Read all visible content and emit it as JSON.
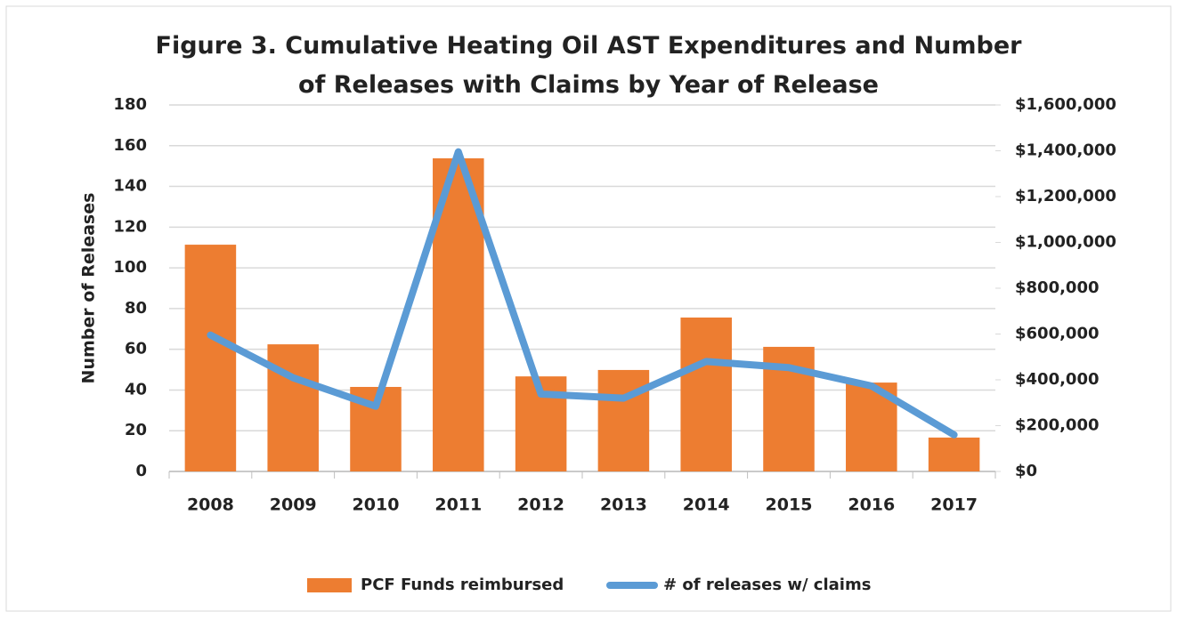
{
  "chart_data": {
    "type": "bar_line",
    "title": "Figure 3. Cumulative Heating Oil AST Expenditures and Number of Releases with Claims by Year of Release",
    "categories": [
      "2008",
      "2009",
      "2010",
      "2011",
      "2012",
      "2013",
      "2014",
      "2015",
      "2016",
      "2017"
    ],
    "ylabel": "Number of Releases",
    "ylim": [
      0,
      180
    ],
    "yticks": [
      0,
      20,
      40,
      60,
      80,
      100,
      120,
      140,
      160,
      180
    ],
    "y2lim": [
      0,
      1600000
    ],
    "y2ticks": [
      {
        "value": 0,
        "label": "$0"
      },
      {
        "value": 200000,
        "label": "$200,000"
      },
      {
        "value": 400000,
        "label": "$400,000"
      },
      {
        "value": 600000,
        "label": "$600,000"
      },
      {
        "value": 800000,
        "label": "$800,000"
      },
      {
        "value": 1000000,
        "label": "$1,000,000"
      },
      {
        "value": 1200000,
        "label": "$1,200,000"
      },
      {
        "value": 1400000,
        "label": "$1,400,000"
      },
      {
        "value": 1600000,
        "label": "$1,600,000"
      }
    ],
    "grid": true,
    "legend": "bottom",
    "series": [
      {
        "name": "PCF Funds reimbursed",
        "type": "bar",
        "axis": "y2",
        "color": "#ed7d31",
        "values": [
          990000,
          555000,
          369000,
          1367000,
          415000,
          443000,
          672000,
          544000,
          388000,
          148000
        ]
      },
      {
        "name": "# of releases w/ claims",
        "type": "line",
        "axis": "y",
        "color": "#5b9bd5",
        "values": [
          67,
          46,
          32,
          157,
          38,
          36,
          54,
          51,
          42,
          18
        ]
      }
    ]
  }
}
